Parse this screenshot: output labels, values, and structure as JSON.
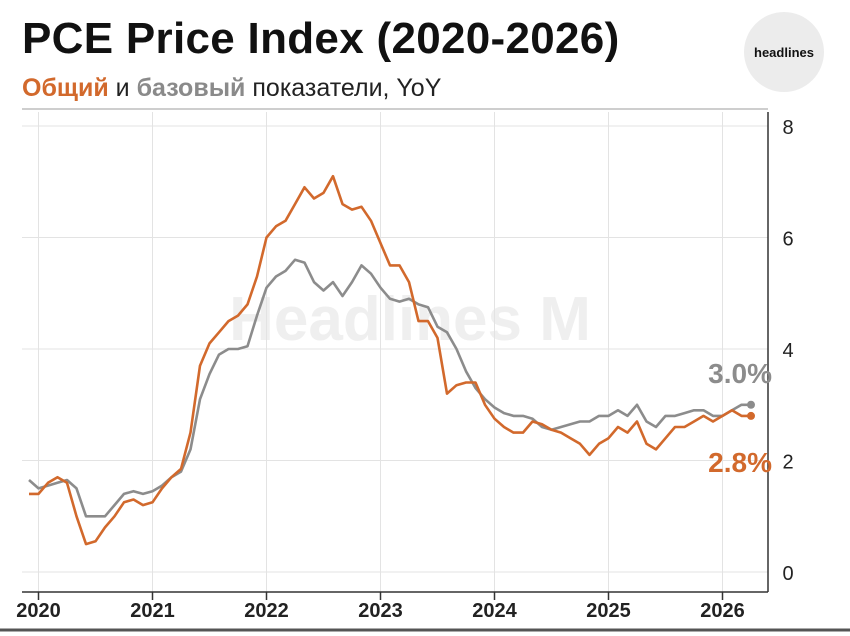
{
  "header": {
    "title": "PCE Price Index (2020-2026)",
    "subtitle_headline": "Общий",
    "subtitle_and": "и",
    "subtitle_core": "базовый",
    "subtitle_rest": "показатели, YoY",
    "logo_text": "headlines",
    "watermark": "Headlines M"
  },
  "colors": {
    "headline": "#d2692c",
    "core": "#8c8c8c",
    "grid": "#e3e3e3",
    "axis": "#333333"
  },
  "chart_data": {
    "type": "line",
    "title": "PCE Price Index (2020-2026)",
    "subtitle": "Общий и базовый показатели, YoY",
    "x_start": "2019-12",
    "y_axis_side": "right",
    "ylim": [
      0,
      8
    ],
    "yticks": [
      0,
      2,
      4,
      6,
      8
    ],
    "xticks": [
      "2020",
      "2021",
      "2022",
      "2023",
      "2024",
      "2025",
      "2026"
    ],
    "grid": true,
    "series": [
      {
        "name": "Общий",
        "values": [
          1.4,
          1.4,
          1.6,
          1.7,
          1.6,
          1.0,
          0.5,
          0.55,
          0.8,
          1.0,
          1.25,
          1.3,
          1.2,
          1.25,
          1.5,
          1.7,
          1.85,
          2.5,
          3.7,
          4.1,
          4.3,
          4.5,
          4.6,
          4.8,
          5.3,
          6.0,
          6.2,
          6.3,
          6.6,
          6.9,
          6.7,
          6.8,
          7.1,
          6.6,
          6.5,
          6.55,
          6.3,
          5.9,
          5.5,
          5.5,
          5.2,
          4.5,
          4.5,
          4.2,
          3.2,
          3.35,
          3.4,
          3.4,
          3.0,
          2.75,
          2.6,
          2.5,
          2.5,
          2.7,
          2.65,
          2.55,
          2.5,
          2.4,
          2.3,
          2.1,
          2.3,
          2.4,
          2.6,
          2.5,
          2.7,
          2.3,
          2.2,
          2.4,
          2.6,
          2.6,
          2.7,
          2.8,
          2.7,
          2.8,
          2.9,
          2.8,
          2.8
        ],
        "last_label": "2.8%"
      },
      {
        "name": "базовый",
        "values": [
          1.65,
          1.5,
          1.55,
          1.6,
          1.65,
          1.5,
          1.0,
          1.0,
          1.0,
          1.2,
          1.4,
          1.45,
          1.4,
          1.45,
          1.55,
          1.7,
          1.8,
          2.2,
          3.1,
          3.55,
          3.9,
          4.0,
          4.0,
          4.05,
          4.6,
          5.1,
          5.3,
          5.4,
          5.6,
          5.55,
          5.2,
          5.05,
          5.2,
          4.95,
          5.2,
          5.5,
          5.35,
          5.1,
          4.9,
          4.85,
          4.9,
          4.8,
          4.75,
          4.4,
          4.3,
          4.0,
          3.6,
          3.3,
          3.1,
          2.95,
          2.85,
          2.8,
          2.8,
          2.75,
          2.6,
          2.55,
          2.6,
          2.65,
          2.7,
          2.7,
          2.8,
          2.8,
          2.9,
          2.8,
          3.0,
          2.7,
          2.6,
          2.8,
          2.8,
          2.85,
          2.9,
          2.9,
          2.8,
          2.8,
          2.9,
          3.0,
          3.0
        ],
        "last_label": "3.0%"
      }
    ]
  }
}
